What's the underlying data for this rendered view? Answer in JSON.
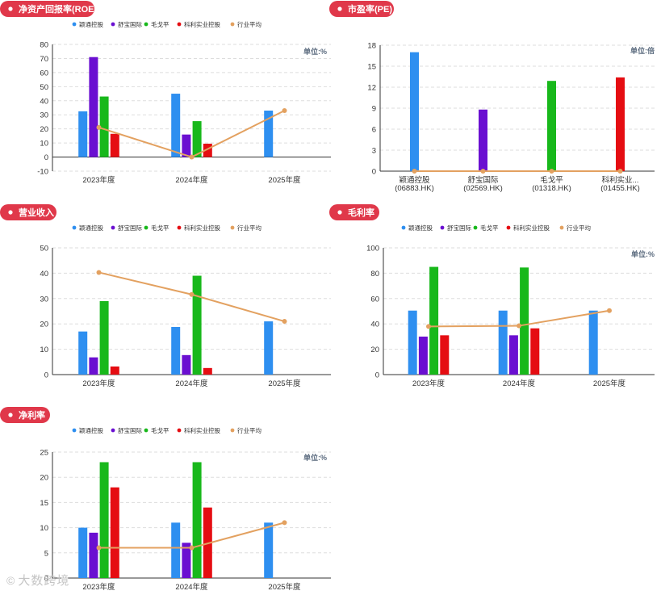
{
  "colors": {
    "companies": [
      "#2e8ff0",
      "#6a0fd1",
      "#18b81b",
      "#e50d12"
    ],
    "industry": "#e3a160",
    "pill": "#e0384a"
  },
  "legend": [
    "颖通控股",
    "舒宝国际",
    "毛戈平",
    "科利实业控股",
    "行业平均"
  ],
  "watermark": {
    "text": "大数跨境",
    "icon": "swirl-logo-icon"
  },
  "chart_data": [
    {
      "id": "roe",
      "type": "bar",
      "title": "净资产回报率(ROE)",
      "unit": "单位:%",
      "categories": [
        "2023年度",
        "2024年度",
        "2025年度"
      ],
      "series": [
        {
          "name": "颖通控股",
          "values": [
            32.5,
            45,
            33
          ]
        },
        {
          "name": "舒宝国际",
          "values": [
            71,
            16,
            null
          ]
        },
        {
          "name": "毛戈平",
          "values": [
            43,
            25.5,
            null
          ]
        },
        {
          "name": "科利实业控股",
          "values": [
            16.5,
            9.5,
            null
          ]
        }
      ],
      "line": {
        "name": "行业平均",
        "values": [
          21,
          0,
          33
        ]
      },
      "ylim": [
        -10,
        80
      ],
      "yticks": [
        -10,
        0,
        10,
        20,
        30,
        40,
        50,
        60,
        70,
        80
      ],
      "legend": true,
      "legend_position": "top"
    },
    {
      "id": "pe",
      "type": "bar",
      "title": "市盈率(PE)",
      "unit": "单位:倍",
      "categories": [
        "颖通控股\n(06883.HK)",
        "舒宝国际\n(02569.HK)",
        "毛戈平\n(01318.HK)",
        "科利实业...\n(01455.HK)"
      ],
      "series": [
        {
          "name": "颖通控股",
          "values": [
            17,
            null,
            null,
            null
          ]
        },
        {
          "name": "舒宝国际",
          "values": [
            null,
            8.8,
            null,
            null
          ]
        },
        {
          "name": "毛戈平",
          "values": [
            null,
            null,
            12.9,
            null
          ]
        },
        {
          "name": "科利实业控股",
          "values": [
            null,
            null,
            null,
            13.4
          ]
        }
      ],
      "line": {
        "name": "行业平均",
        "values": [
          0,
          0,
          0,
          0
        ]
      },
      "ylim": [
        0,
        18
      ],
      "yticks": [
        0,
        3,
        6,
        9,
        12,
        15,
        18
      ],
      "legend": false
    },
    {
      "id": "revenue",
      "type": "bar",
      "title": "营业收入",
      "unit": "",
      "categories": [
        "2023年度",
        "2024年度",
        "2025年度"
      ],
      "series": [
        {
          "name": "颖通控股",
          "values": [
            17,
            18.8,
            21
          ]
        },
        {
          "name": "舒宝国际",
          "values": [
            6.8,
            7.7,
            null
          ]
        },
        {
          "name": "毛戈平",
          "values": [
            29,
            39,
            null
          ]
        },
        {
          "name": "科利实业控股",
          "values": [
            3.2,
            2.6,
            null
          ]
        }
      ],
      "line": {
        "name": "行业平均",
        "values": [
          40.3,
          31.6,
          21
        ]
      },
      "ylim": [
        0,
        50
      ],
      "yticks": [
        0,
        10,
        20,
        30,
        40,
        50
      ],
      "legend": true,
      "legend_position": "top"
    },
    {
      "id": "gross",
      "type": "bar",
      "title": "毛利率",
      "unit": "单位:%",
      "categories": [
        "2023年度",
        "2024年度",
        "2025年度"
      ],
      "series": [
        {
          "name": "颖通控股",
          "values": [
            50.5,
            50.5,
            50.5
          ]
        },
        {
          "name": "舒宝国际",
          "values": [
            30,
            31,
            null
          ]
        },
        {
          "name": "毛戈平",
          "values": [
            85,
            84.5,
            null
          ]
        },
        {
          "name": "科利实业控股",
          "values": [
            31,
            36.5,
            null
          ]
        }
      ],
      "line": {
        "name": "行业平均",
        "values": [
          38,
          38.5,
          50.5
        ]
      },
      "ylim": [
        0,
        100
      ],
      "yticks": [
        0,
        20,
        40,
        60,
        80,
        100
      ],
      "legend": true,
      "legend_position": "top"
    },
    {
      "id": "net",
      "type": "bar",
      "title": "净利率",
      "unit": "单位:%",
      "categories": [
        "2023年度",
        "2024年度",
        "2025年度"
      ],
      "series": [
        {
          "name": "颖通控股",
          "values": [
            10,
            11,
            11
          ]
        },
        {
          "name": "舒宝国际",
          "values": [
            9,
            7,
            null
          ]
        },
        {
          "name": "毛戈平",
          "values": [
            23,
            23,
            null
          ]
        },
        {
          "name": "科利实业控股",
          "values": [
            18,
            14,
            null
          ]
        }
      ],
      "line": {
        "name": "行业平均",
        "values": [
          6,
          6,
          11
        ]
      },
      "ylim": [
        0,
        25
      ],
      "yticks": [
        0,
        5,
        10,
        15,
        20,
        25
      ],
      "legend": true,
      "legend_position": "top"
    }
  ]
}
